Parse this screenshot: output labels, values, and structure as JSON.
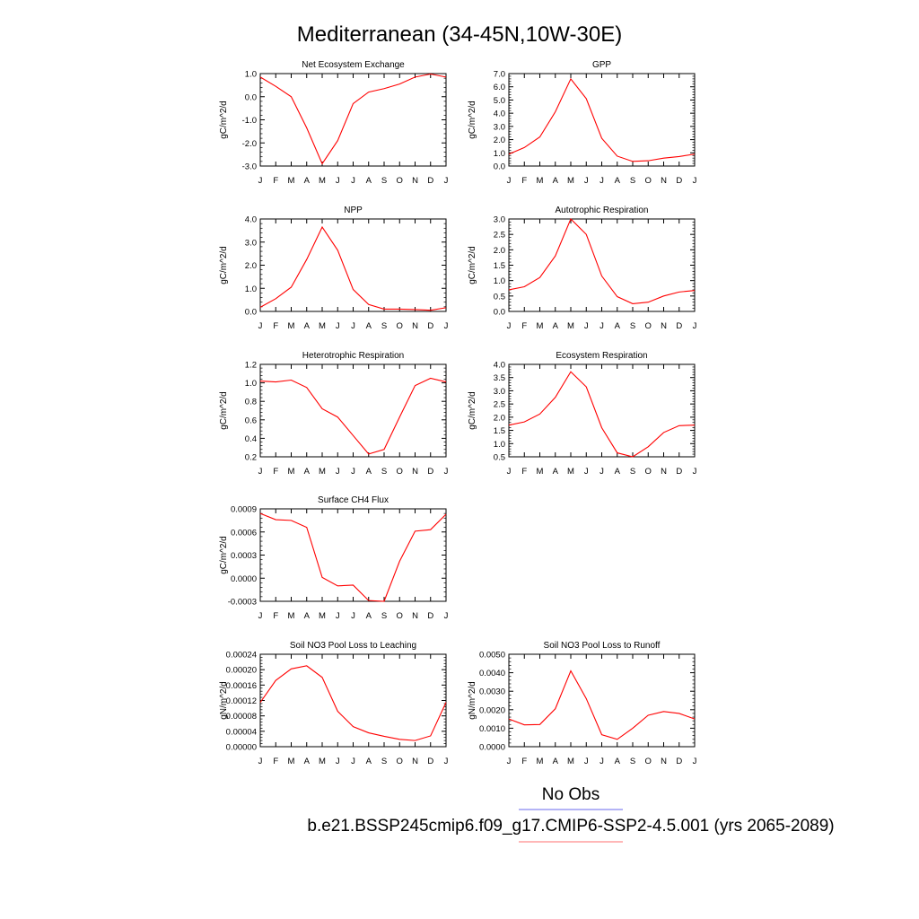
{
  "page": {
    "title": "Mediterranean (34-45N,10W-30E)",
    "legend": [
      {
        "label": "No Obs",
        "color": "#6a6aee"
      },
      {
        "label": "b.e21.BSSP245cmip6.f09_g17.CMIP6-SSP2-4.5.001 (yrs 2065-2089)",
        "color": "#ff6f6f"
      }
    ]
  },
  "chart_data": [
    {
      "type": "line",
      "title": "Net Ecosystem Exchange",
      "ylabel": "gC/m^2/d",
      "categories": [
        "J",
        "F",
        "M",
        "A",
        "M",
        "J",
        "J",
        "A",
        "S",
        "O",
        "N",
        "D",
        "J"
      ],
      "ylim": [
        -3.0,
        1.0
      ],
      "yticks": [
        -3.0,
        -2.0,
        -1.0,
        0.0,
        1.0
      ],
      "ytick_labels": [
        "-3.0",
        "-2.0",
        "-1.0",
        "0.0",
        "1.0"
      ],
      "series": [
        {
          "color": "#ff0000",
          "values": [
            0.85,
            0.45,
            0.0,
            -1.35,
            -2.9,
            -1.9,
            -0.3,
            0.2,
            0.35,
            0.55,
            0.85,
            0.98,
            0.85
          ]
        }
      ]
    },
    {
      "type": "line",
      "title": "GPP",
      "ylabel": "gC/m^2/d",
      "categories": [
        "J",
        "F",
        "M",
        "A",
        "M",
        "J",
        "J",
        "A",
        "S",
        "O",
        "N",
        "D",
        "J"
      ],
      "ylim": [
        0.0,
        7.0
      ],
      "yticks": [
        0,
        1,
        2,
        3,
        4,
        5,
        6,
        7
      ],
      "ytick_labels": [
        "0.0",
        "1.0",
        "2.0",
        "3.0",
        "4.0",
        "5.0",
        "6.0",
        "7.0"
      ],
      "series": [
        {
          "color": "#ff0000",
          "values": [
            0.9,
            1.4,
            2.2,
            4.1,
            6.6,
            5.1,
            2.1,
            0.75,
            0.35,
            0.4,
            0.6,
            0.72,
            0.9
          ]
        }
      ]
    },
    {
      "type": "line",
      "title": "NPP",
      "ylabel": "gC/m^2/d",
      "categories": [
        "J",
        "F",
        "M",
        "A",
        "M",
        "J",
        "J",
        "A",
        "S",
        "O",
        "N",
        "D",
        "J"
      ],
      "ylim": [
        0.0,
        4.0
      ],
      "yticks": [
        0,
        1,
        2,
        3,
        4
      ],
      "ytick_labels": [
        "0.0",
        "1.0",
        "2.0",
        "3.0",
        "4.0"
      ],
      "series": [
        {
          "color": "#ff0000",
          "values": [
            0.18,
            0.55,
            1.05,
            2.25,
            3.65,
            2.65,
            0.95,
            0.3,
            0.1,
            0.1,
            0.08,
            0.05,
            0.16
          ]
        }
      ]
    },
    {
      "type": "line",
      "title": "Autotrophic Respiration",
      "ylabel": "gC/m^2/d",
      "categories": [
        "J",
        "F",
        "M",
        "A",
        "M",
        "J",
        "J",
        "A",
        "S",
        "O",
        "N",
        "D",
        "J"
      ],
      "ylim": [
        0.0,
        3.0
      ],
      "yticks": [
        0,
        0.5,
        1,
        1.5,
        2,
        2.5,
        3
      ],
      "ytick_labels": [
        "0.0",
        "0.5",
        "1.0",
        "1.5",
        "2.0",
        "2.5",
        "3.0"
      ],
      "series": [
        {
          "color": "#ff0000",
          "values": [
            0.7,
            0.8,
            1.1,
            1.8,
            3.0,
            2.5,
            1.15,
            0.48,
            0.25,
            0.3,
            0.5,
            0.63,
            0.68
          ]
        }
      ]
    },
    {
      "type": "line",
      "title": "Heterotrophic Respiration",
      "ylabel": "gC/m^2/d",
      "categories": [
        "J",
        "F",
        "M",
        "A",
        "M",
        "J",
        "J",
        "A",
        "S",
        "O",
        "N",
        "D",
        "J"
      ],
      "ylim": [
        0.2,
        1.2
      ],
      "yticks": [
        0.2,
        0.4,
        0.6,
        0.8,
        1.0,
        1.2
      ],
      "ytick_labels": [
        "0.2",
        "0.4",
        "0.6",
        "0.8",
        "1.0",
        "1.2"
      ],
      "series": [
        {
          "color": "#ff0000",
          "values": [
            1.02,
            1.01,
            1.03,
            0.95,
            0.72,
            0.63,
            0.43,
            0.23,
            0.28,
            0.63,
            0.97,
            1.05,
            1.01
          ]
        }
      ]
    },
    {
      "type": "line",
      "title": "Ecosystem Respiration",
      "ylabel": "gC/m^2/d",
      "categories": [
        "J",
        "F",
        "M",
        "A",
        "M",
        "J",
        "J",
        "A",
        "S",
        "O",
        "N",
        "D",
        "J"
      ],
      "ylim": [
        0.5,
        4.0
      ],
      "yticks": [
        0.5,
        1,
        1.5,
        2,
        2.5,
        3,
        3.5,
        4
      ],
      "ytick_labels": [
        "0.5",
        "1.0",
        "1.5",
        "2.0",
        "2.5",
        "3.0",
        "3.5",
        "4.0"
      ],
      "series": [
        {
          "color": "#ff0000",
          "values": [
            1.7,
            1.82,
            2.12,
            2.75,
            3.72,
            3.15,
            1.6,
            0.65,
            0.5,
            0.88,
            1.42,
            1.68,
            1.7
          ]
        }
      ]
    },
    {
      "type": "line",
      "title": "Surface CH4 Flux",
      "ylabel": "gC/m^2/d",
      "categories": [
        "J",
        "F",
        "M",
        "A",
        "M",
        "J",
        "J",
        "A",
        "S",
        "O",
        "N",
        "D",
        "J"
      ],
      "ylim": [
        -0.0003,
        0.0009
      ],
      "yticks": [
        -0.0003,
        0.0,
        0.0003,
        0.0006,
        0.0009
      ],
      "ytick_labels": [
        "-0.0003",
        "0.0000",
        "0.0003",
        "0.0006",
        "0.0009"
      ],
      "series": [
        {
          "color": "#ff0000",
          "values": [
            0.00084,
            0.00076,
            0.00075,
            0.00066,
            1e-05,
            -0.0001,
            -9e-05,
            -0.00029,
            -0.0003,
            0.00022,
            0.00061,
            0.00063,
            0.00083
          ]
        }
      ]
    },
    {
      "type": "line",
      "title": "Soil NO3 Pool Loss to Leaching",
      "ylabel": "gN/m^2/d",
      "categories": [
        "J",
        "F",
        "M",
        "A",
        "M",
        "J",
        "J",
        "A",
        "S",
        "O",
        "N",
        "D",
        "J"
      ],
      "ylim": [
        0.0,
        0.00024
      ],
      "yticks": [
        0,
        4e-05,
        8e-05,
        0.00012,
        0.00016,
        0.0002,
        0.00024
      ],
      "ytick_labels": [
        "0.00000",
        "0.00004",
        "0.00008",
        "0.00012",
        "0.00016",
        "0.00020",
        "0.00024"
      ],
      "series": [
        {
          "color": "#ff0000",
          "values": [
            0.000115,
            0.000172,
            0.000202,
            0.00021,
            0.00018,
            9.2e-05,
            5.2e-05,
            3.6e-05,
            2.7e-05,
            1.9e-05,
            1.6e-05,
            2.8e-05,
            0.000115
          ]
        }
      ]
    },
    {
      "type": "line",
      "title": "Soil NO3 Pool Loss to Runoff",
      "ylabel": "gN/m^2/d",
      "categories": [
        "J",
        "F",
        "M",
        "A",
        "M",
        "J",
        "J",
        "A",
        "S",
        "O",
        "N",
        "D",
        "J"
      ],
      "ylim": [
        0.0,
        0.005
      ],
      "yticks": [
        0,
        0.001,
        0.002,
        0.003,
        0.004,
        0.005
      ],
      "ytick_labels": [
        "0.0000",
        "0.0010",
        "0.0020",
        "0.0030",
        "0.0040",
        "0.0050"
      ],
      "series": [
        {
          "color": "#ff0000",
          "values": [
            0.0015,
            0.00118,
            0.0012,
            0.00205,
            0.0041,
            0.0026,
            0.00065,
            0.0004,
            0.001,
            0.0017,
            0.0019,
            0.0018,
            0.0015
          ]
        }
      ]
    }
  ]
}
